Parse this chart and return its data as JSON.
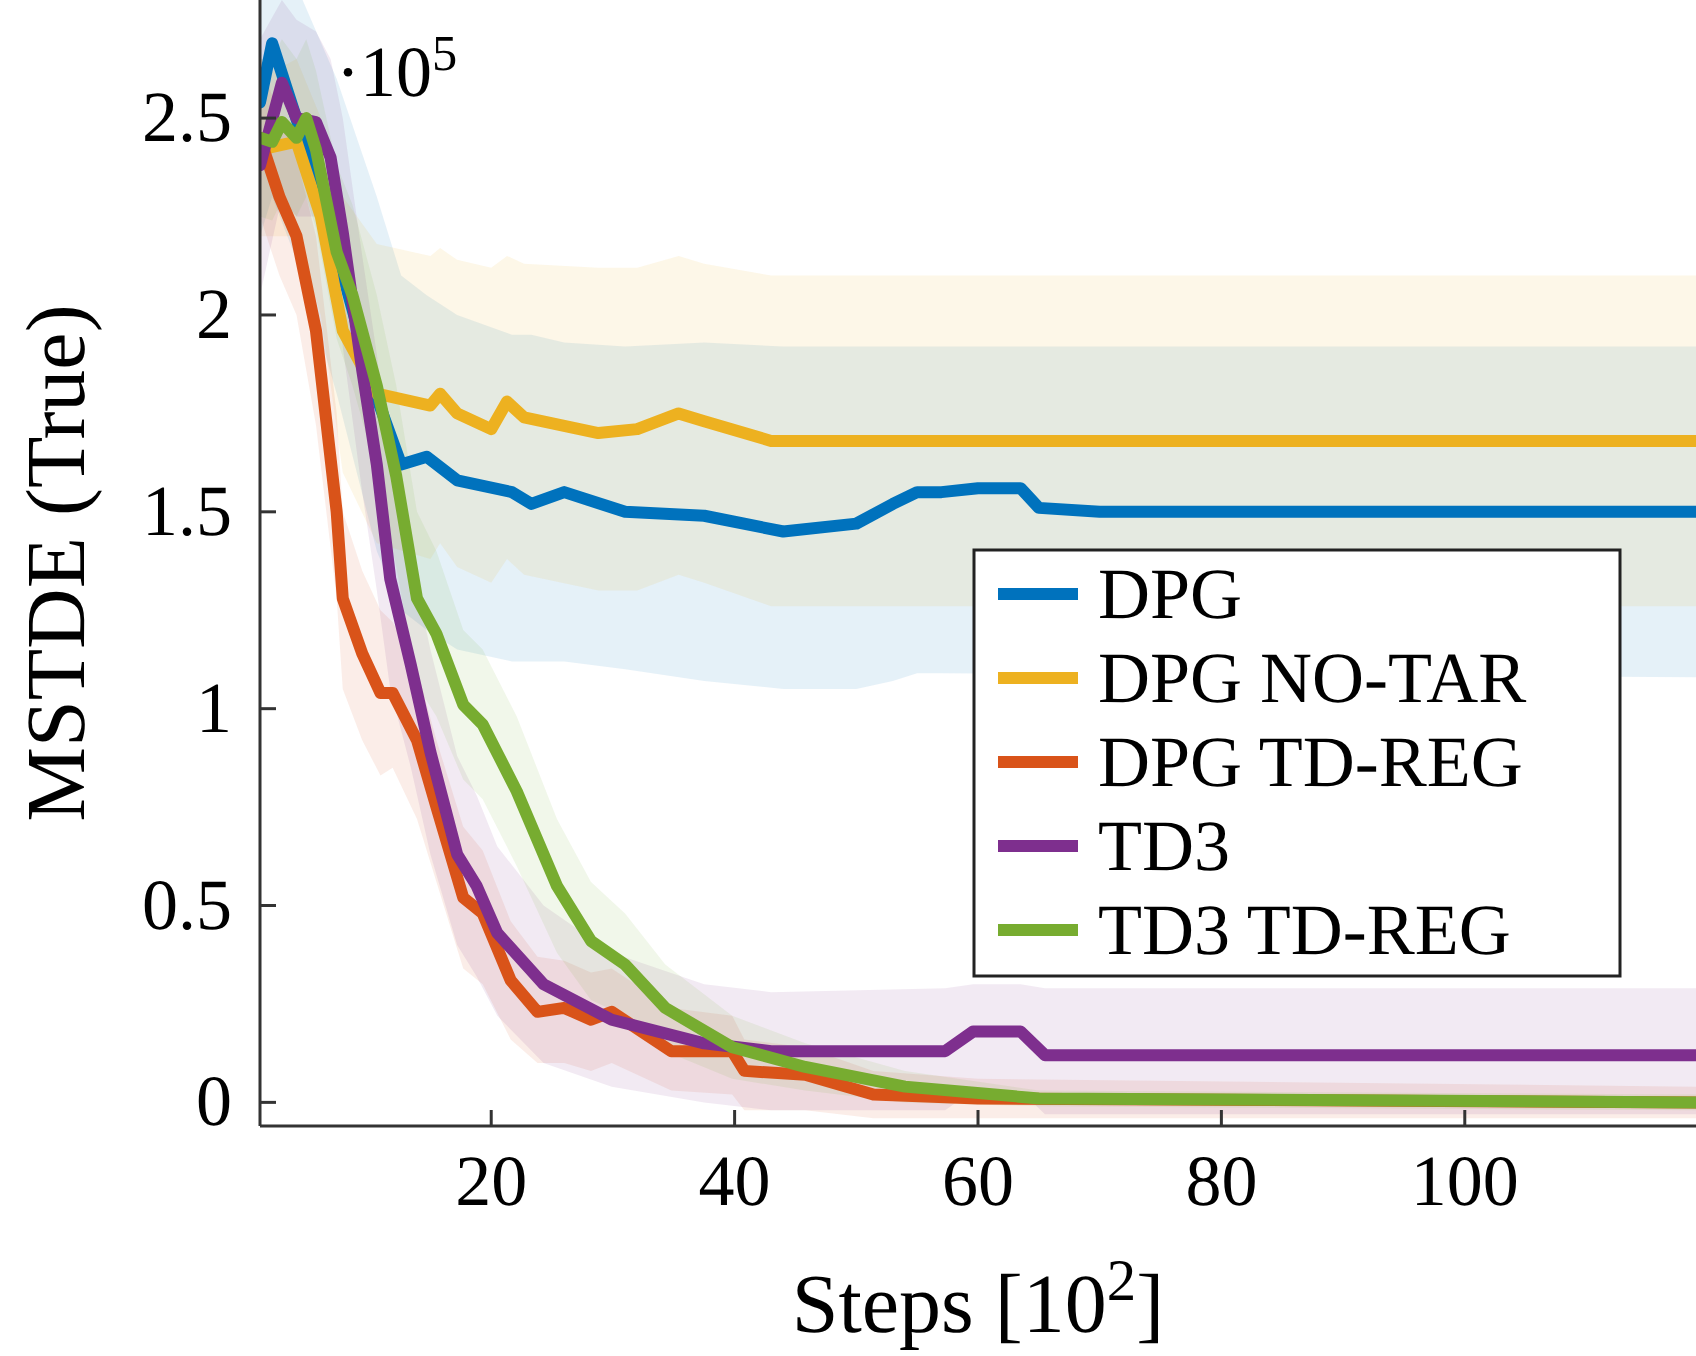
{
  "chart_data": {
    "type": "line",
    "xlabel": "Steps [10$^{2}$]",
    "ylabel": "MSTDE (True)",
    "annotations": [
      "·10$^{5}$"
    ],
    "xlim": [
      1,
      119
    ],
    "ylim": [
      -0.06,
      2.8
    ],
    "xticks": [
      20,
      40,
      60,
      80,
      100
    ],
    "yticks": [
      0,
      0.5,
      1,
      1.5,
      2,
      2.5
    ],
    "legend": "right",
    "series": [
      {
        "name": "DPG",
        "color": "#0072bd",
        "x": [
          1,
          2,
          4.5,
          7.3,
          10.6,
          12.6,
          14.7,
          17.2,
          21.7,
          23.3,
          26,
          31,
          37.5,
          44,
          50,
          53,
          55,
          57,
          60,
          63.5,
          65,
          70,
          119
        ],
        "values": [
          2.54,
          2.69,
          2.45,
          2.16,
          1.79,
          1.62,
          1.64,
          1.58,
          1.55,
          1.52,
          1.55,
          1.5,
          1.49,
          1.45,
          1.47,
          1.52,
          1.55,
          1.55,
          1.56,
          1.56,
          1.51,
          1.5,
          1.5
        ],
        "upper": [
          2.8,
          2.8,
          2.8,
          2.6,
          2.3,
          2.1,
          2.05,
          2,
          1.95,
          1.95,
          1.93,
          1.92,
          1.93,
          1.92,
          1.92,
          1.92,
          1.92,
          1.92,
          null,
          null,
          null,
          null,
          1.92
        ],
        "lower": [
          2.2,
          2.3,
          2.1,
          1.8,
          1.4,
          1.25,
          1.2,
          1.15,
          1.12,
          1.12,
          1.12,
          1.1,
          1.07,
          1.05,
          1.05,
          1.07,
          1.09,
          1.09,
          null,
          null,
          null,
          null,
          1.08
        ]
      },
      {
        "name": "DPG NO-TAR",
        "color": "#edb120",
        "x": [
          1,
          4,
          6,
          7.8,
          10.6,
          15,
          15.8,
          17.2,
          20,
          21.3,
          22.7,
          28.8,
          32,
          35.4,
          37.5,
          43,
          119
        ],
        "values": [
          2.42,
          2.44,
          2.25,
          1.96,
          1.8,
          1.77,
          1.8,
          1.75,
          1.71,
          1.78,
          1.74,
          1.7,
          1.71,
          1.75,
          1.73,
          1.68,
          1.68
        ],
        "upper": [
          2.6,
          2.65,
          2.5,
          2.3,
          2.18,
          2.15,
          2.17,
          2.14,
          2.12,
          2.15,
          2.13,
          2.12,
          2.12,
          2.15,
          2.13,
          2.1,
          2.1
        ],
        "lower": [
          2.2,
          2.2,
          2,
          1.6,
          1.42,
          1.38,
          1.42,
          1.36,
          1.32,
          1.38,
          1.34,
          1.3,
          1.3,
          1.34,
          1.32,
          1.26,
          1.26
        ]
      },
      {
        "name": "DPG TD-REG",
        "color": "#d95319",
        "x": [
          1,
          2.6,
          4,
          5.6,
          7.3,
          7.8,
          9.4,
          10.9,
          11.9,
          13.9,
          15.5,
          17.7,
          19.3,
          21.6,
          23.8,
          26,
          28.2,
          29.9,
          34.8,
          39.8,
          40.8,
          45.8,
          51.4,
          60,
          119
        ],
        "values": [
          2.45,
          2.3,
          2.2,
          1.96,
          1.5,
          1.28,
          1.14,
          1.04,
          1.04,
          0.92,
          0.75,
          0.52,
          0.48,
          0.31,
          0.23,
          0.24,
          0.21,
          0.23,
          0.13,
          0.13,
          0.08,
          0.07,
          0.02,
          0.01,
          0
        ],
        "upper": [
          2.65,
          2.5,
          2.4,
          2.2,
          1.75,
          1.5,
          1.35,
          1.25,
          1.22,
          1.1,
          0.92,
          0.7,
          0.64,
          0.46,
          0.37,
          0.36,
          0.33,
          0.34,
          0.24,
          0.22,
          0.16,
          0.14,
          0.08,
          0.06,
          0.04
        ],
        "lower": [
          2.25,
          2.1,
          2,
          1.72,
          1.28,
          1.05,
          0.92,
          0.83,
          0.85,
          0.72,
          0.56,
          0.34,
          0.3,
          0.16,
          0.1,
          0.1,
          0.08,
          0.1,
          0.03,
          0.02,
          -0.02,
          -0.02,
          -0.04,
          -0.04,
          -0.04
        ]
      },
      {
        "name": "TD3",
        "color": "#7e2f8e",
        "x": [
          1,
          2.8,
          4,
          5.6,
          6.8,
          7.8,
          9.4,
          10.6,
          11.7,
          13.4,
          15,
          17.2,
          18.8,
          20.5,
          24.3,
          29.9,
          37.5,
          43,
          57.3,
          59.6,
          63.5,
          65.5,
          119
        ],
        "values": [
          2.38,
          2.59,
          2.5,
          2.49,
          2.4,
          2.21,
          1.86,
          1.62,
          1.33,
          1.11,
          0.89,
          0.63,
          0.55,
          0.43,
          0.3,
          0.21,
          0.15,
          0.13,
          0.13,
          0.18,
          0.18,
          0.12,
          0.12
        ],
        "upper": [
          2.7,
          2.8,
          2.75,
          2.72,
          2.65,
          2.5,
          2.15,
          1.9,
          1.6,
          1.38,
          1.15,
          0.88,
          0.78,
          0.65,
          0.5,
          0.38,
          0.3,
          0.28,
          0.29,
          0.3,
          0.3,
          0.29,
          0.29
        ],
        "lower": [
          2.05,
          2.3,
          2.25,
          2.25,
          2.15,
          1.92,
          1.55,
          1.3,
          1.05,
          0.85,
          0.63,
          0.4,
          0.32,
          0.22,
          0.1,
          0.04,
          0,
          -0.02,
          -0.02,
          0.03,
          0.03,
          -0.03,
          -0.03
        ]
      },
      {
        "name": "TD3 TD-REG",
        "color": "#77ac30",
        "x": [
          1,
          2,
          2.8,
          4,
          4.8,
          5.6,
          7.3,
          8.6,
          10.6,
          12.2,
          13.9,
          15.5,
          17.7,
          19.3,
          22.1,
          25.4,
          28.2,
          31,
          34.3,
          39.8,
          45.8,
          54,
          65,
          119
        ],
        "values": [
          2.45,
          2.44,
          2.49,
          2.45,
          2.5,
          2.42,
          2.16,
          2.05,
          1.82,
          1.59,
          1.28,
          1.19,
          1.01,
          0.96,
          0.79,
          0.55,
          0.41,
          0.35,
          0.24,
          0.14,
          0.09,
          0.04,
          0.01,
          0
        ],
        "upper": [
          2.65,
          2.65,
          2.7,
          2.65,
          2.7,
          2.62,
          2.38,
          2.28,
          2.05,
          1.82,
          1.5,
          1.4,
          1.2,
          1.15,
          0.98,
          0.72,
          0.56,
          0.48,
          0.35,
          0.22,
          0.15,
          0.08,
          0.03,
          0.02
        ],
        "lower": [
          2.25,
          2.24,
          2.29,
          2.25,
          2.3,
          2.22,
          1.94,
          1.82,
          1.6,
          1.36,
          1.06,
          0.98,
          0.82,
          0.77,
          0.6,
          0.38,
          0.26,
          0.22,
          0.13,
          0.06,
          0.03,
          0,
          -0.01,
          -0.02
        ]
      }
    ]
  }
}
